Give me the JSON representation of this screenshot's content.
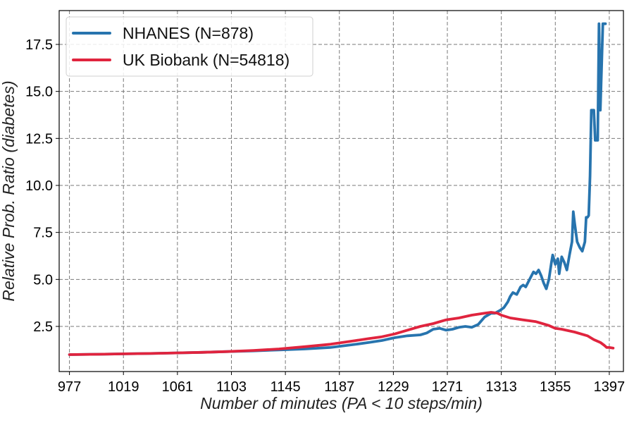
{
  "chart_data": {
    "type": "line",
    "xlabel": "Number of minutes (PA < 10 steps/min)",
    "ylabel": "Relative Prob. Ratio (diabetes)",
    "xlim": [
      969,
      1408
    ],
    "ylim": [
      0.1,
      19.3
    ],
    "x_ticks": [
      977,
      1019,
      1061,
      1103,
      1145,
      1187,
      1229,
      1271,
      1313,
      1355,
      1397
    ],
    "y_ticks": [
      2.5,
      5.0,
      7.5,
      10.0,
      12.5,
      15.0,
      17.5
    ],
    "y_tick_labels": [
      "2.5",
      "5.0",
      "7.5",
      "10.0",
      "12.5",
      "15.0",
      "17.5"
    ],
    "grid": true,
    "legend_position": "top-left",
    "series": [
      {
        "name": "NHANES (N=878)",
        "color": "#2774ae",
        "x": [
          977,
          1000,
          1020,
          1040,
          1060,
          1080,
          1100,
          1120,
          1140,
          1160,
          1180,
          1200,
          1210,
          1220,
          1230,
          1240,
          1250,
          1255,
          1260,
          1265,
          1270,
          1275,
          1280,
          1285,
          1290,
          1295,
          1300,
          1305,
          1308,
          1312,
          1315,
          1318,
          1320,
          1322,
          1325,
          1328,
          1330,
          1332,
          1335,
          1338,
          1340,
          1342,
          1344,
          1346,
          1348,
          1350,
          1352,
          1353,
          1355,
          1357,
          1358,
          1360,
          1362,
          1364,
          1366,
          1368,
          1369,
          1370,
          1372,
          1374,
          1376,
          1378,
          1379,
          1380,
          1381,
          1382,
          1383,
          1385,
          1386,
          1387,
          1388,
          1389,
          1390,
          1392,
          1394
        ],
        "y": [
          1.0,
          1.02,
          1.04,
          1.06,
          1.09,
          1.12,
          1.16,
          1.2,
          1.25,
          1.3,
          1.38,
          1.55,
          1.65,
          1.75,
          1.9,
          2.0,
          2.05,
          2.15,
          2.35,
          2.4,
          2.3,
          2.35,
          2.45,
          2.5,
          2.45,
          2.6,
          3.0,
          3.2,
          3.2,
          3.35,
          3.5,
          3.8,
          4.1,
          4.3,
          4.2,
          4.6,
          4.7,
          4.6,
          5.0,
          5.4,
          5.3,
          5.5,
          5.2,
          4.8,
          4.5,
          5.0,
          5.9,
          6.3,
          5.8,
          6.1,
          5.3,
          6.2,
          5.9,
          5.5,
          6.3,
          7.0,
          8.6,
          8.0,
          7.0,
          6.7,
          6.5,
          7.0,
          8.3,
          8.3,
          8.4,
          10.5,
          14.0,
          14.0,
          12.4,
          12.4,
          12.4,
          18.6,
          14.0,
          18.6,
          18.6
        ]
      },
      {
        "name": "UK Biobank (N=54818)",
        "color": "#e0243e",
        "x": [
          977,
          1000,
          1020,
          1040,
          1060,
          1080,
          1100,
          1120,
          1140,
          1160,
          1180,
          1200,
          1210,
          1220,
          1230,
          1240,
          1250,
          1260,
          1270,
          1280,
          1290,
          1300,
          1305,
          1310,
          1313,
          1320,
          1330,
          1340,
          1350,
          1355,
          1360,
          1370,
          1380,
          1385,
          1390,
          1393,
          1395,
          1397,
          1400
        ],
        "y": [
          1.0,
          1.02,
          1.04,
          1.06,
          1.09,
          1.12,
          1.16,
          1.22,
          1.3,
          1.42,
          1.55,
          1.75,
          1.85,
          1.95,
          2.1,
          2.3,
          2.5,
          2.65,
          2.85,
          2.95,
          3.1,
          3.2,
          3.25,
          3.2,
          3.1,
          2.95,
          2.85,
          2.75,
          2.55,
          2.4,
          2.35,
          2.2,
          2.0,
          1.8,
          1.65,
          1.5,
          1.38,
          1.38,
          1.35
        ]
      }
    ]
  }
}
